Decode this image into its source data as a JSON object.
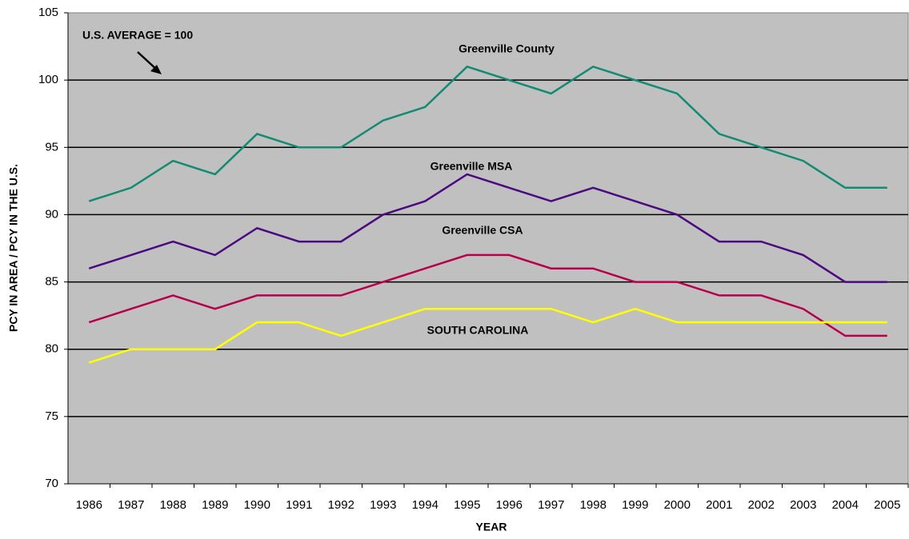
{
  "chart_data": {
    "type": "line",
    "xlabel": "YEAR",
    "ylabel": "PCY IN AREA / PCY IN THE U.S.",
    "annotation": "U.S. AVERAGE = 100",
    "categories": [
      "1986",
      "1987",
      "1988",
      "1989",
      "1990",
      "1991",
      "1992",
      "1993",
      "1994",
      "1995",
      "1996",
      "1997",
      "1998",
      "1999",
      "2000",
      "2001",
      "2002",
      "2003",
      "2004",
      "2005"
    ],
    "series": [
      {
        "name": "Greenville County",
        "color": "#138a72",
        "values": [
          91,
          92,
          94,
          93,
          96,
          95,
          95,
          97,
          98,
          101,
          100,
          99,
          101,
          100,
          99,
          96,
          95,
          94,
          92,
          92
        ]
      },
      {
        "name": "Greenville MSA",
        "color": "#4b0a82",
        "values": [
          86,
          87,
          88,
          87,
          89,
          88,
          88,
          90,
          91,
          93,
          92,
          91,
          92,
          91,
          90,
          88,
          88,
          87,
          85,
          85
        ]
      },
      {
        "name": "Greenville CSA",
        "color": "#b8004c",
        "values": [
          82,
          83,
          84,
          83,
          84,
          84,
          84,
          85,
          86,
          87,
          87,
          86,
          86,
          85,
          85,
          84,
          84,
          83,
          81,
          81
        ]
      },
      {
        "name": "SOUTH CAROLINA",
        "color": "#ffff00",
        "values": [
          79,
          80,
          80,
          80,
          82,
          82,
          81,
          82,
          83,
          83,
          83,
          83,
          82,
          83,
          82,
          82,
          82,
          82,
          82,
          82
        ]
      }
    ],
    "ylim": [
      70,
      105
    ],
    "yticks": [
      70,
      75,
      80,
      85,
      90,
      95,
      100,
      105
    ],
    "grid": true
  }
}
